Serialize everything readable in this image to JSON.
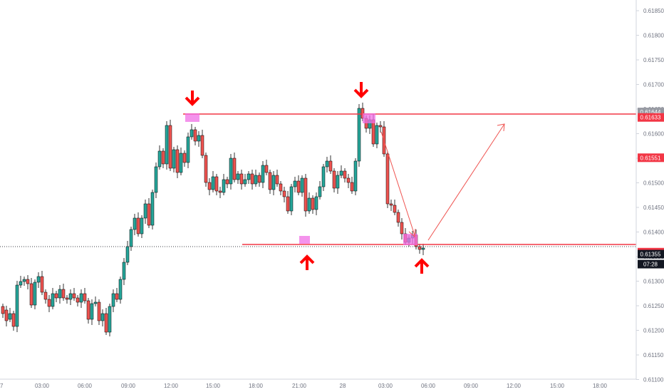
{
  "chart_data": {
    "type": "candlestick",
    "title": "",
    "x_tick_labels": [
      "7",
      "03:00",
      "06:00",
      "09:00",
      "12:00",
      "15:00",
      "18:00",
      "21:00",
      "28",
      "03:00",
      "06:00",
      "09:00",
      "12:00",
      "15:00",
      "18:00"
    ],
    "y_tick_labels": [
      "0.61850",
      "0.61800",
      "0.61750",
      "0.61700",
      "0.61650",
      "0.61600",
      "0.61550",
      "0.61500",
      "0.61450",
      "0.61400",
      "0.61350",
      "0.61300",
      "0.61250",
      "0.61200",
      "0.61150",
      "0.61100"
    ],
    "ylim": [
      0.6107,
      0.6187
    ],
    "grid": false,
    "price_tags": [
      {
        "label": "0.61644",
        "value": 0.61644,
        "color": "#9598a1"
      },
      {
        "label": "0.61633",
        "value": 0.61633,
        "color": "#f23645"
      },
      {
        "label": "0.61551",
        "value": 0.61551,
        "color": "#f23645"
      },
      {
        "label": "0.61359",
        "value": 0.61359,
        "color": "#f23645"
      },
      {
        "label": "0.61355",
        "value": 0.61355,
        "color": "#131722"
      }
    ],
    "countdown_label": "07:28",
    "resistance_level": 0.61633,
    "support_level": 0.61359,
    "last_price": 0.61355,
    "colors": {
      "up": "#26a69a",
      "down": "#ef5350",
      "level": "#f23645",
      "marker": "#e91e63",
      "zone": "#f48fb1"
    }
  }
}
